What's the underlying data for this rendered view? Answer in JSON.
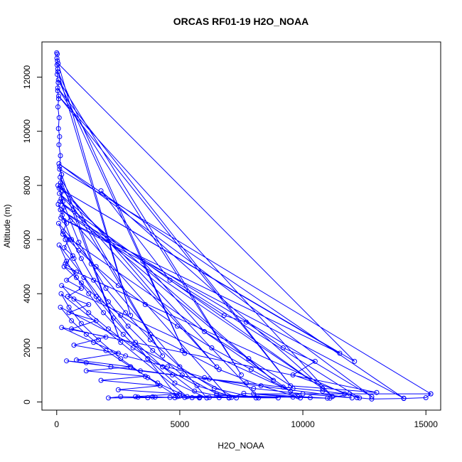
{
  "chart_data": {
    "type": "line",
    "title": "ORCAS RF01-19 H2O_NOAA",
    "xlabel": "H2O_NOAA",
    "ylabel": "Altitude (m)",
    "xlim": [
      -600,
      15600
    ],
    "ylim": [
      -300,
      13300
    ],
    "xticks": [
      0,
      5000,
      10000,
      15000
    ],
    "yticks": [
      0,
      2000,
      4000,
      6000,
      8000,
      10000,
      12000
    ],
    "grid": false,
    "legend": "none",
    "markers": "open-circle",
    "series": [
      {
        "color": "#0000ff",
        "points": [
          [
            0,
            12900
          ],
          [
            20,
            12850
          ],
          [
            10,
            12700
          ],
          [
            30,
            12600
          ],
          [
            15,
            12450
          ],
          [
            40,
            12300
          ],
          [
            20,
            12100
          ],
          [
            60,
            11800
          ],
          [
            40,
            11500
          ],
          [
            80,
            11200
          ],
          [
            50,
            10900
          ],
          [
            100,
            10500
          ],
          [
            70,
            10100
          ],
          [
            120,
            9800
          ],
          [
            90,
            9500
          ],
          [
            150,
            9100
          ],
          [
            120,
            8700
          ],
          [
            200,
            8400
          ],
          [
            160,
            8100
          ],
          [
            250,
            7800
          ],
          [
            180,
            7500
          ],
          [
            300,
            7200
          ],
          [
            220,
            6900
          ],
          [
            400,
            6600
          ],
          [
            260,
            6300
          ],
          [
            500,
            6000
          ],
          [
            300,
            5700
          ],
          [
            650,
            5400
          ],
          [
            350,
            5100
          ],
          [
            800,
            4800
          ],
          [
            400,
            4500
          ],
          [
            1000,
            4200
          ],
          [
            450,
            3900
          ],
          [
            1300,
            3600
          ],
          [
            500,
            3300
          ],
          [
            1600,
            3000
          ],
          [
            600,
            2700
          ],
          [
            2000,
            2400
          ],
          [
            700,
            2100
          ],
          [
            2500,
            1800
          ],
          [
            800,
            1550
          ],
          [
            3000,
            1300
          ],
          [
            1200,
            1150
          ],
          [
            3600,
            950
          ],
          [
            1800,
            800
          ],
          [
            4200,
            600
          ],
          [
            2500,
            450
          ],
          [
            5000,
            300
          ],
          [
            3200,
            200
          ],
          [
            5800,
            150
          ],
          [
            4000,
            180
          ],
          [
            7000,
            160
          ],
          [
            5000,
            220
          ],
          [
            9000,
            150
          ],
          [
            6500,
            250
          ],
          [
            11000,
            140
          ],
          [
            8000,
            300
          ],
          [
            15200,
            300
          ],
          [
            120,
            8600
          ],
          [
            2600,
            2200
          ],
          [
            140,
            8300
          ],
          [
            4300,
            1700
          ],
          [
            160,
            8000
          ],
          [
            6500,
            1300
          ],
          [
            110,
            7700
          ],
          [
            8800,
            800
          ],
          [
            130,
            7400
          ],
          [
            10800,
            500
          ],
          [
            150,
            7100
          ],
          [
            12800,
            200
          ],
          [
            90,
            8800
          ],
          [
            14100,
            140
          ],
          [
            170,
            6800
          ],
          [
            11500,
            1800
          ],
          [
            100,
            7900
          ],
          [
            12100,
            1500
          ],
          [
            60,
            12500
          ],
          [
            3000,
            3200
          ],
          [
            50,
            12200
          ],
          [
            5200,
            1800
          ],
          [
            70,
            11900
          ],
          [
            7500,
            1000
          ],
          [
            40,
            11600
          ],
          [
            9600,
            500
          ],
          [
            80,
            11300
          ],
          [
            11200,
            200
          ],
          [
            1800,
            7800
          ],
          [
            4600,
            4500
          ],
          [
            6800,
            3200
          ],
          [
            7700,
            2950
          ],
          [
            9200,
            2000
          ],
          [
            10500,
            1500
          ],
          [
            9600,
            1000
          ],
          [
            12300,
            150
          ],
          [
            3500,
            5200
          ],
          [
            6000,
            2600
          ],
          [
            7800,
            1600
          ],
          [
            9500,
            600
          ],
          [
            13000,
            350
          ],
          [
            200,
            2750
          ],
          [
            1500,
            2200
          ],
          [
            2800,
            1700
          ],
          [
            4500,
            1300
          ],
          [
            6000,
            900
          ],
          [
            8000,
            500
          ],
          [
            10000,
            300
          ],
          [
            12000,
            150
          ],
          [
            400,
            1520
          ],
          [
            1200,
            1450
          ],
          [
            2200,
            1300
          ],
          [
            3400,
            1150
          ],
          [
            4700,
            1000
          ],
          [
            6200,
            850
          ],
          [
            7700,
            700
          ],
          [
            9200,
            550
          ],
          [
            10800,
            400
          ],
          [
            11700,
            300
          ],
          [
            300,
            5000
          ],
          [
            1000,
            4400
          ],
          [
            1700,
            3800
          ],
          [
            2600,
            3200
          ],
          [
            3800,
            2500
          ],
          [
            5100,
            1900
          ],
          [
            6600,
            1200
          ],
          [
            8300,
            600
          ],
          [
            9900,
            150
          ],
          [
            250,
            6200
          ],
          [
            900,
            5600
          ],
          [
            1600,
            5000
          ],
          [
            2500,
            4300
          ],
          [
            3600,
            3600
          ],
          [
            4900,
            2800
          ],
          [
            6300,
            2000
          ],
          [
            7900,
            1200
          ],
          [
            9500,
            400
          ],
          [
            200,
            4300
          ],
          [
            700,
            3800
          ],
          [
            1300,
            3300
          ],
          [
            2100,
            2700
          ],
          [
            3100,
            2000
          ],
          [
            4300,
            1300
          ],
          [
            5700,
            600
          ],
          [
            7300,
            150
          ],
          [
            150,
            3500
          ],
          [
            600,
            3000
          ],
          [
            1200,
            2500
          ],
          [
            2000,
            1900
          ],
          [
            3000,
            1300
          ],
          [
            4100,
            700
          ],
          [
            5300,
            200
          ],
          [
            180,
            4000
          ],
          [
            500,
            3500
          ],
          [
            1000,
            2900
          ],
          [
            1700,
            2300
          ],
          [
            2600,
            1600
          ],
          [
            3700,
            900
          ],
          [
            4900,
            200
          ],
          [
            100,
            5800
          ],
          [
            400,
            5200
          ],
          [
            800,
            4600
          ],
          [
            1300,
            4000
          ],
          [
            1900,
            3300
          ],
          [
            2700,
            2500
          ],
          [
            3700,
            1600
          ],
          [
            4800,
            700
          ],
          [
            6100,
            150
          ],
          [
            80,
            6600
          ],
          [
            350,
            6000
          ],
          [
            700,
            5300
          ],
          [
            1100,
            4600
          ],
          [
            1600,
            3900
          ],
          [
            2300,
            3100
          ],
          [
            3200,
            2200
          ],
          [
            4300,
            1300
          ],
          [
            5600,
            400
          ],
          [
            7000,
            150
          ],
          [
            60,
            7300
          ],
          [
            300,
            6700
          ],
          [
            600,
            6000
          ],
          [
            1000,
            5300
          ],
          [
            1500,
            4500
          ],
          [
            2100,
            3700
          ],
          [
            2900,
            2800
          ],
          [
            3900,
            1900
          ],
          [
            5100,
            1000
          ],
          [
            6500,
            300
          ],
          [
            8200,
            150
          ],
          [
            50,
            8000
          ],
          [
            250,
            7400
          ],
          [
            550,
            6700
          ],
          [
            900,
            5900
          ],
          [
            1400,
            5100
          ],
          [
            2000,
            4200
          ],
          [
            2800,
            3300
          ],
          [
            3800,
            2300
          ],
          [
            5000,
            1300
          ],
          [
            6400,
            500
          ],
          [
            8100,
            150
          ],
          [
            9800,
            200
          ],
          [
            2100,
            150
          ],
          [
            2600,
            200
          ],
          [
            3300,
            180
          ],
          [
            3700,
            160
          ],
          [
            3900,
            190
          ],
          [
            4600,
            170
          ],
          [
            4800,
            160
          ],
          [
            5200,
            170
          ],
          [
            5500,
            160
          ],
          [
            5800,
            180
          ],
          [
            6200,
            170
          ],
          [
            6600,
            160
          ],
          [
            7100,
            170
          ],
          [
            7600,
            320
          ],
          [
            9600,
            180
          ],
          [
            10300,
            160
          ],
          [
            11100,
            140
          ],
          [
            11900,
            300
          ],
          [
            12200,
            160
          ],
          [
            12800,
            110
          ],
          [
            14100,
            130
          ],
          [
            15000,
            160
          ],
          [
            15200,
            300
          ]
        ]
      }
    ]
  }
}
